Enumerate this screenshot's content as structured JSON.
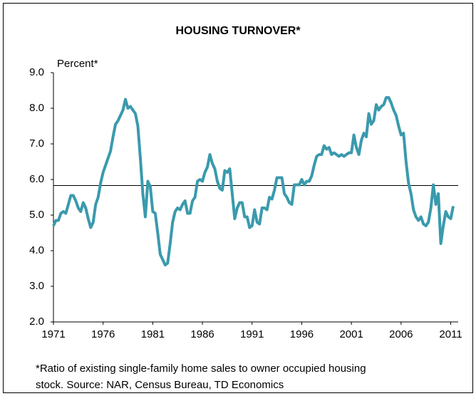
{
  "chart_data": {
    "type": "line",
    "title": "HOUSING TURNOVER*",
    "ylabel": "Percent*",
    "footnote": [
      "*Ratio of existing single-family home sales to owner occupied housing",
      "stock. Source: NAR, Census Bureau, TD Economics"
    ],
    "xlim": [
      1971,
      2011.75
    ],
    "xticks": [
      1971,
      1976,
      1981,
      1986,
      1991,
      1996,
      2001,
      2006,
      2011
    ],
    "ylim": [
      2,
      9
    ],
    "yticks": [
      {
        "value": 2,
        "label": "2.0"
      },
      {
        "value": 3,
        "label": "3.0"
      },
      {
        "value": 4,
        "label": "4.0"
      },
      {
        "value": 5,
        "label": "5.0"
      },
      {
        "value": 6,
        "label": "6.0"
      },
      {
        "value": 7,
        "label": "7.0"
      },
      {
        "value": 8,
        "label": "8.0"
      },
      {
        "value": 9,
        "label": "9.0"
      }
    ],
    "reference_line": 5.83,
    "x": [
      1971,
      1971.25,
      1971.5,
      1971.75,
      1972,
      1972.25,
      1972.5,
      1972.75,
      1973,
      1973.25,
      1973.5,
      1973.75,
      1974,
      1974.25,
      1974.5,
      1974.75,
      1975,
      1975.25,
      1975.5,
      1975.75,
      1976,
      1976.25,
      1976.5,
      1976.75,
      1977,
      1977.25,
      1977.5,
      1977.75,
      1978,
      1978.25,
      1978.5,
      1978.75,
      1979,
      1979.25,
      1979.5,
      1979.75,
      1980,
      1980.25,
      1980.5,
      1980.75,
      1981,
      1981.25,
      1981.5,
      1981.75,
      1982,
      1982.25,
      1982.5,
      1982.75,
      1983,
      1983.25,
      1983.5,
      1983.75,
      1984,
      1984.25,
      1984.5,
      1984.75,
      1985,
      1985.25,
      1985.5,
      1985.75,
      1986,
      1986.25,
      1986.5,
      1986.75,
      1987,
      1987.25,
      1987.5,
      1987.75,
      1988,
      1988.25,
      1988.5,
      1988.75,
      1989,
      1989.25,
      1989.5,
      1989.75,
      1990,
      1990.25,
      1990.5,
      1990.75,
      1991,
      1991.25,
      1991.5,
      1991.75,
      1992,
      1992.25,
      1992.5,
      1992.75,
      1993,
      1993.25,
      1993.5,
      1993.75,
      1994,
      1994.25,
      1994.5,
      1994.75,
      1995,
      1995.25,
      1995.5,
      1995.75,
      1996,
      1996.25,
      1996.5,
      1996.75,
      1997,
      1997.25,
      1997.5,
      1997.75,
      1998,
      1998.25,
      1998.5,
      1998.75,
      1999,
      1999.25,
      1999.5,
      1999.75,
      2000,
      2000.25,
      2000.5,
      2000.75,
      2001,
      2001.25,
      2001.5,
      2001.75,
      2002,
      2002.25,
      2002.5,
      2002.75,
      2003,
      2003.25,
      2003.5,
      2003.75,
      2004,
      2004.25,
      2004.5,
      2004.75,
      2005,
      2005.25,
      2005.5,
      2005.75,
      2006,
      2006.25,
      2006.5,
      2006.75,
      2007,
      2007.25,
      2007.5,
      2007.75,
      2008,
      2008.25,
      2008.5,
      2008.75,
      2009,
      2009.25,
      2009.5,
      2009.75,
      2010,
      2010.25,
      2010.5,
      2010.75,
      2011,
      2011.25
    ],
    "series": [
      {
        "name": "Housing turnover",
        "color": "#3a9aad",
        "values": [
          4.7,
          4.85,
          4.85,
          5.05,
          5.1,
          5.05,
          5.3,
          5.55,
          5.55,
          5.4,
          5.2,
          5.1,
          5.35,
          5.2,
          4.9,
          4.65,
          4.8,
          5.3,
          5.5,
          5.9,
          6.2,
          6.4,
          6.6,
          6.8,
          7.2,
          7.55,
          7.65,
          7.8,
          7.95,
          8.25,
          8.0,
          8.05,
          7.95,
          7.85,
          7.5,
          6.6,
          5.6,
          4.95,
          5.95,
          5.8,
          5.1,
          5.05,
          4.5,
          3.9,
          3.75,
          3.6,
          3.65,
          4.2,
          4.8,
          5.1,
          5.2,
          5.15,
          5.3,
          5.4,
          5.05,
          5.05,
          5.4,
          5.5,
          5.95,
          6.0,
          5.95,
          6.2,
          6.35,
          6.7,
          6.45,
          6.3,
          5.95,
          5.75,
          5.7,
          6.25,
          6.2,
          6.3,
          5.6,
          4.9,
          5.2,
          5.35,
          5.35,
          4.95,
          4.95,
          4.65,
          4.7,
          5.15,
          4.8,
          4.75,
          5.2,
          5.2,
          5.15,
          5.5,
          5.45,
          5.7,
          6.05,
          6.05,
          6.05,
          5.6,
          5.5,
          5.35,
          5.3,
          5.85,
          5.85,
          5.85,
          6.0,
          5.85,
          5.95,
          5.95,
          6.1,
          6.4,
          6.65,
          6.7,
          6.7,
          6.95,
          6.85,
          6.9,
          6.7,
          6.75,
          6.7,
          6.65,
          6.7,
          6.65,
          6.7,
          6.75,
          6.75,
          7.25,
          6.9,
          6.7,
          7.1,
          7.3,
          7.2,
          7.85,
          7.55,
          7.65,
          8.1,
          7.95,
          8.05,
          8.1,
          8.3,
          8.3,
          8.15,
          7.95,
          7.8,
          7.5,
          7.25,
          7.3,
          6.5,
          5.9,
          5.6,
          5.15,
          4.95,
          4.85,
          4.95,
          4.75,
          4.7,
          4.8,
          5.2,
          5.85,
          5.3,
          5.6,
          4.2,
          4.7,
          5.1,
          4.95,
          4.9,
          5.25
        ]
      }
    ]
  }
}
